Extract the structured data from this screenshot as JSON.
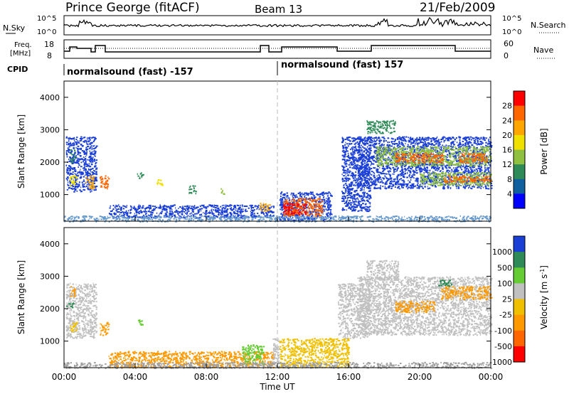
{
  "header": {
    "station": "Prince George (fitACF)",
    "beam": "Beam 13",
    "date": "21/Feb/2009"
  },
  "noise_panel": {
    "left_label": "N.Sky",
    "right_label": "N.Search",
    "left_ticks": [
      "10^5",
      "10^0"
    ],
    "right_ticks": [
      "10^5",
      "10^0"
    ]
  },
  "freq_panel": {
    "left_label_line1": "Freq.",
    "left_label_line2": "[MHz]",
    "right_label": "Nave",
    "left_ticks": [
      "18",
      "8"
    ],
    "right_ticks": [
      "60",
      "0"
    ],
    "cpid_label": "CPID",
    "cpid_segments": [
      "normalsound (fast) -157",
      "normalsound (fast) 157"
    ]
  },
  "chart_data": [
    {
      "type": "heatmap",
      "name": "power",
      "ylabel": "Slant Range [km]",
      "yticks": [
        1000,
        2000,
        3000,
        4000
      ],
      "ylim": [
        180,
        4500
      ],
      "xlim": [
        0,
        24
      ],
      "colorbar_label": "Power [dB]",
      "colorbar_ticks": [
        "28",
        "24",
        "20",
        "16",
        "12",
        "8",
        "4"
      ],
      "colorbar_colors": [
        "#ff0000",
        "#ff6600",
        "#ffa500",
        "#f0e000",
        "#90c040",
        "#2e8b57",
        "#1060a0",
        "#0000ff"
      ],
      "regions": [
        {
          "t0": 0.1,
          "t1": 1.8,
          "r0": 1100,
          "r1": 2800,
          "color": "#1a3fd6"
        },
        {
          "t0": 0.3,
          "t1": 0.6,
          "r0": 2000,
          "r1": 2400,
          "color": "#2e8b57"
        },
        {
          "t0": 0.3,
          "t1": 0.7,
          "r0": 1300,
          "r1": 1600,
          "color": "#f0e000"
        },
        {
          "t0": 1.2,
          "t1": 1.7,
          "r0": 1200,
          "r1": 1600,
          "color": "#ffa500"
        },
        {
          "t0": 2.0,
          "t1": 2.5,
          "r0": 1200,
          "r1": 1600,
          "color": "#ff6600"
        },
        {
          "t0": 2.5,
          "t1": 11.8,
          "r0": 300,
          "r1": 700,
          "color": "#1a3fd6"
        },
        {
          "t0": 4.1,
          "t1": 4.4,
          "r0": 1500,
          "r1": 1700,
          "color": "#2e8b57"
        },
        {
          "t0": 5.2,
          "t1": 5.5,
          "r0": 1300,
          "r1": 1500,
          "color": "#f0e000"
        },
        {
          "t0": 7.0,
          "t1": 7.4,
          "r0": 1050,
          "r1": 1300,
          "color": "#2e8b57"
        },
        {
          "t0": 8.8,
          "t1": 9.0,
          "r0": 1000,
          "r1": 1200,
          "color": "#90c040"
        },
        {
          "t0": 11.0,
          "t1": 11.6,
          "r0": 500,
          "r1": 750,
          "color": "#ffa500"
        },
        {
          "t0": 12.1,
          "t1": 15.0,
          "r0": 200,
          "r1": 1100,
          "color": "#1a3fd6"
        },
        {
          "t0": 12.3,
          "t1": 14.5,
          "r0": 350,
          "r1": 900,
          "color": "#ff6600"
        },
        {
          "t0": 12.3,
          "t1": 13.6,
          "r0": 400,
          "r1": 750,
          "color": "#ff0000"
        },
        {
          "t0": 15.6,
          "t1": 17.2,
          "r0": 500,
          "r1": 2800,
          "color": "#1a3fd6"
        },
        {
          "t0": 16.5,
          "t1": 24.0,
          "r0": 1200,
          "r1": 2800,
          "color": "#1a3fd6"
        },
        {
          "t0": 17.0,
          "t1": 18.6,
          "r0": 2900,
          "r1": 3300,
          "color": "#2e8b57"
        },
        {
          "t0": 17.5,
          "t1": 24.0,
          "r0": 1900,
          "r1": 2500,
          "color": "#90c040"
        },
        {
          "t0": 18.6,
          "t1": 21.3,
          "r0": 2000,
          "r1": 2300,
          "color": "#ff6600"
        },
        {
          "t0": 20.0,
          "t1": 24.0,
          "r0": 1300,
          "r1": 1700,
          "color": "#90c040"
        },
        {
          "t0": 21.3,
          "t1": 24.0,
          "r0": 1400,
          "r1": 1600,
          "color": "#ff6600"
        },
        {
          "t0": 22.2,
          "t1": 23.8,
          "r0": 2000,
          "r1": 2300,
          "color": "#ff6600"
        },
        {
          "t0": 0.0,
          "t1": 24.0,
          "r0": 180,
          "r1": 360,
          "color": "#6699cc"
        }
      ]
    },
    {
      "type": "heatmap",
      "name": "velocity",
      "ylabel": "Slant Range [km]",
      "yticks": [
        1000,
        2000,
        3000,
        4000
      ],
      "ylim": [
        180,
        4500
      ],
      "xlim": [
        0,
        24
      ],
      "xticks": [
        "00:00",
        "04:00",
        "08:00",
        "12:00",
        "16:00",
        "20:00",
        "00:00"
      ],
      "xlabel": "Time UT",
      "colorbar_label": "Velocity [m s^-1]",
      "colorbar_ticks": [
        "1000",
        "500",
        "100",
        "25",
        "-25",
        "-100",
        "-500",
        "-1000"
      ],
      "colorbar_colors": [
        "#1a3fd6",
        "#2e8b57",
        "#66cc33",
        "#c0c0c0",
        "#f0c000",
        "#ff9900",
        "#ff6600",
        "#ff0000"
      ],
      "regions": [
        {
          "t0": 0.1,
          "t1": 1.8,
          "r0": 1100,
          "r1": 2800,
          "color": "#c0c0c0"
        },
        {
          "t0": 0.3,
          "t1": 0.6,
          "r0": 2400,
          "r1": 2700,
          "color": "#ff9900"
        },
        {
          "t0": 0.1,
          "t1": 0.5,
          "r0": 2050,
          "r1": 2200,
          "color": "#2e8b57"
        },
        {
          "t0": 0.3,
          "t1": 0.7,
          "r0": 1300,
          "r1": 1600,
          "color": "#f0c000"
        },
        {
          "t0": 2.0,
          "t1": 2.5,
          "r0": 1200,
          "r1": 1600,
          "color": "#ff9900"
        },
        {
          "t0": 2.5,
          "t1": 11.8,
          "r0": 200,
          "r1": 700,
          "color": "#ff9900"
        },
        {
          "t0": 4.1,
          "t1": 4.4,
          "r0": 1500,
          "r1": 1700,
          "color": "#66cc33"
        },
        {
          "t0": 10.0,
          "t1": 11.2,
          "r0": 300,
          "r1": 900,
          "color": "#66cc33"
        },
        {
          "t0": 11.7,
          "t1": 12.1,
          "r0": 300,
          "r1": 1100,
          "color": "#c0c0c0"
        },
        {
          "t0": 12.1,
          "t1": 16.0,
          "r0": 200,
          "r1": 1100,
          "color": "#f0c000"
        },
        {
          "t0": 15.4,
          "t1": 17.2,
          "r0": 1100,
          "r1": 2800,
          "color": "#c0c0c0"
        },
        {
          "t0": 16.5,
          "t1": 24.0,
          "r0": 1200,
          "r1": 3000,
          "color": "#c0c0c0"
        },
        {
          "t0": 17.0,
          "t1": 18.8,
          "r0": 2900,
          "r1": 3500,
          "color": "#c0c0c0"
        },
        {
          "t0": 18.6,
          "t1": 20.8,
          "r0": 1900,
          "r1": 2250,
          "color": "#ff9900"
        },
        {
          "t0": 21.2,
          "t1": 24.0,
          "r0": 2300,
          "r1": 2700,
          "color": "#ff9900"
        },
        {
          "t0": 21.0,
          "t1": 21.8,
          "r0": 2700,
          "r1": 2900,
          "color": "#2e8b57"
        },
        {
          "t0": 0.0,
          "t1": 24.0,
          "r0": 180,
          "r1": 360,
          "color": "#a0a0a0"
        }
      ]
    }
  ]
}
